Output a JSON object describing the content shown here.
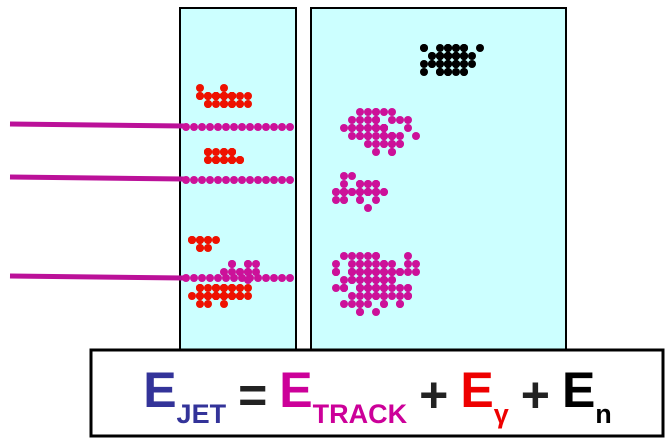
{
  "equation": {
    "terms": [
      {
        "symbol": "E",
        "subscript": "JET"
      },
      {
        "symbol": "E",
        "subscript": "TRACK"
      },
      {
        "symbol": "E",
        "subscript": "γ"
      },
      {
        "symbol": "E",
        "subscript": "n"
      }
    ],
    "operators": [
      "=",
      "+",
      "+"
    ]
  }
}
